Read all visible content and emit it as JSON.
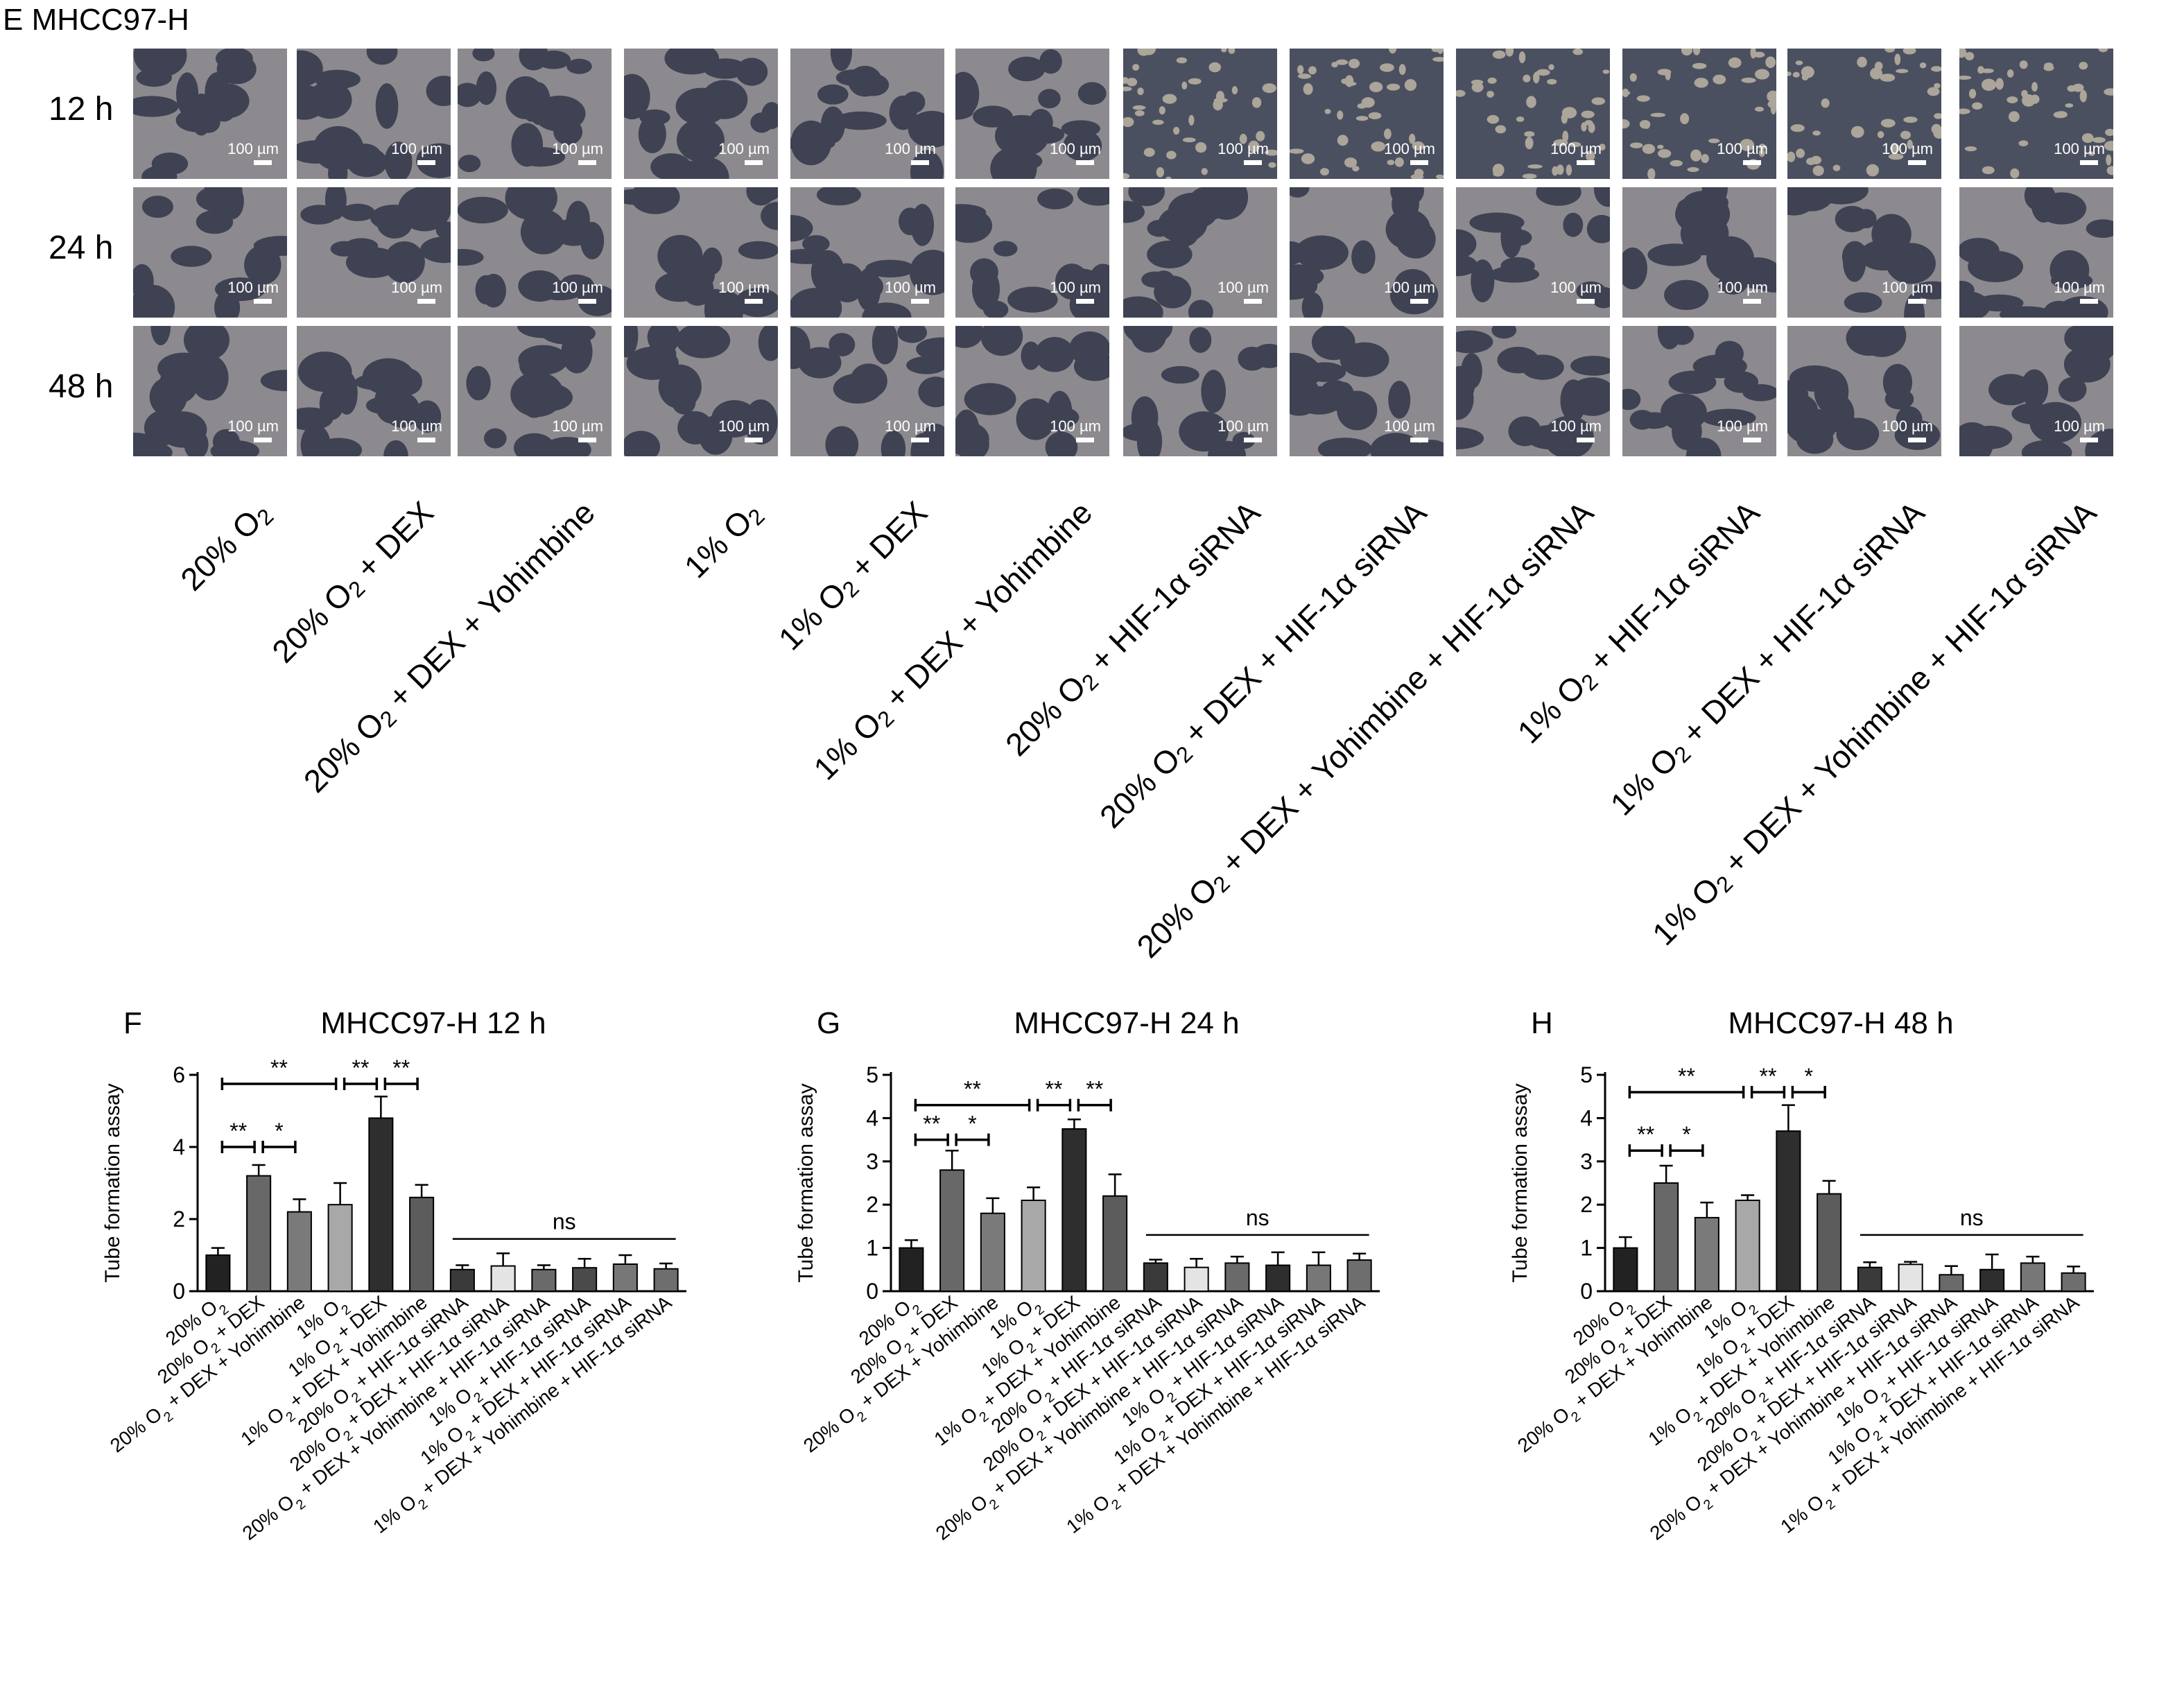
{
  "panel_e": {
    "label": "E",
    "cell_line": "MHCC97-H",
    "rows": [
      "12 h",
      "24 h",
      "48 h"
    ],
    "scale_bar": "100 µm",
    "conditions": [
      "20% O₂",
      "20% O₂ + DEX",
      "20% O₂ + DEX + Yohimbine",
      "1% O₂",
      "1% O₂ + DEX",
      "1% O₂ + DEX + Yohimbine",
      "20% O₂ + HIF-1α siRNA",
      "20% O₂ + DEX + HIF-1α siRNA",
      "20% O₂ + DEX + Yohimbine + HIF-1α siRNA",
      "1% O₂ + HIF-1α siRNA",
      "1% O₂ + DEX + HIF-1α siRNA",
      "1% O₂ + DEX + Yohimbine + HIF-1α siRNA"
    ]
  },
  "chart_data": [
    {
      "type": "bar",
      "panel": "F",
      "title": "MHCC97-H 12 h",
      "ylabel": "Tube formation assay",
      "ylim": [
        0,
        6
      ],
      "yticks": [
        0,
        2,
        4,
        6
      ],
      "categories": [
        "20% O₂",
        "20% O₂ + DEX",
        "20% O₂ + DEX + Yohimbine",
        "1% O₂",
        "1% O₂ + DEX",
        "1% O₂ + DEX + Yohimbine",
        "20% O₂ + HIF-1α siRNA",
        "20% O₂ + DEX + HIF-1α siRNA",
        "20% O₂ + DEX + Yohimbine + HIF-1α siRNA",
        "1% O₂ + HIF-1α siRNA",
        "1% O₂ + DEX + HIF-1α siRNA",
        "1% O₂ + DEX + Yohimbine + HIF-1α siRNA"
      ],
      "values": [
        1.0,
        3.2,
        2.2,
        2.4,
        4.8,
        2.6,
        0.6,
        0.7,
        0.6,
        0.65,
        0.75,
        0.62
      ],
      "errors": [
        0.2,
        0.3,
        0.35,
        0.6,
        0.6,
        0.35,
        0.12,
        0.35,
        0.12,
        0.25,
        0.25,
        0.15
      ],
      "colors": [
        "#222222",
        "#686868",
        "#7a7a7a",
        "#a8a8a8",
        "#2e2e2e",
        "#5c5c5c",
        "#3a3a3a",
        "#e4e4e4",
        "#6a6a6a",
        "#4a4a4a",
        "#777777",
        "#6e6e6e"
      ],
      "brackets": [
        {
          "from": 0,
          "to": 1,
          "label": "**",
          "y": 4.0
        },
        {
          "from": 1,
          "to": 2,
          "label": "*",
          "y": 4.0
        },
        {
          "from": 0,
          "to": 3,
          "label": "**",
          "y": 5.75
        },
        {
          "from": 3,
          "to": 4,
          "label": "**",
          "y": 5.75
        },
        {
          "from": 4,
          "to": 5,
          "label": "**",
          "y": 5.75
        }
      ],
      "ns_line": {
        "from": 6,
        "to": 11,
        "label": "ns",
        "y": 1.45
      }
    },
    {
      "type": "bar",
      "panel": "G",
      "title": "MHCC97-H 24 h",
      "ylabel": "Tube formation assay",
      "ylim": [
        0,
        5
      ],
      "yticks": [
        0,
        1,
        2,
        3,
        4,
        5
      ],
      "categories": [
        "20% O₂",
        "20% O₂ + DEX",
        "20% O₂ + DEX + Yohimbine",
        "1% O₂",
        "1% O₂ + DEX",
        "1% O₂ + DEX + Yohimbine",
        "20% O₂ + HIF-1α siRNA",
        "20% O₂ + DEX + HIF-1α siRNA",
        "20% O₂ + DEX + Yohimbine + HIF-1α siRNA",
        "1% O₂ + HIF-1α siRNA",
        "1% O₂ + DEX + HIF-1α siRNA",
        "1% O₂ + DEX + Yohimbine + HIF-1α siRNA"
      ],
      "values": [
        1.0,
        2.8,
        1.8,
        2.1,
        3.75,
        2.2,
        0.65,
        0.55,
        0.65,
        0.6,
        0.6,
        0.72
      ],
      "errors": [
        0.18,
        0.45,
        0.35,
        0.3,
        0.22,
        0.5,
        0.08,
        0.2,
        0.15,
        0.3,
        0.3,
        0.15
      ],
      "colors": [
        "#222222",
        "#686868",
        "#7a7a7a",
        "#a8a8a8",
        "#2e2e2e",
        "#5c5c5c",
        "#3a3a3a",
        "#e4e4e4",
        "#6a6a6a",
        "#2e2e2e",
        "#777777",
        "#6e6e6e"
      ],
      "brackets": [
        {
          "from": 0,
          "to": 1,
          "label": "**",
          "y": 3.5
        },
        {
          "from": 1,
          "to": 2,
          "label": "*",
          "y": 3.5
        },
        {
          "from": 0,
          "to": 3,
          "label": "**",
          "y": 4.3
        },
        {
          "from": 3,
          "to": 4,
          "label": "**",
          "y": 4.3
        },
        {
          "from": 4,
          "to": 5,
          "label": "**",
          "y": 4.3
        }
      ],
      "ns_line": {
        "from": 6,
        "to": 11,
        "label": "ns",
        "y": 1.3
      }
    },
    {
      "type": "bar",
      "panel": "H",
      "title": "MHCC97-H 48 h",
      "ylabel": "Tube formation assay",
      "ylim": [
        0,
        5
      ],
      "yticks": [
        0,
        1,
        2,
        3,
        4,
        5
      ],
      "categories": [
        "20% O₂",
        "20% O₂ + DEX",
        "20% O₂ + DEX + Yohimbine",
        "1% O₂",
        "1% O₂ + DEX",
        "1% O₂ + DEX + Yohimbine",
        "20% O₂ + HIF-1α siRNA",
        "20% O₂ + DEX + HIF-1α siRNA",
        "20% O₂ + DEX + Yohimbine + HIF-1α siRNA",
        "1% O₂ + HIF-1α siRNA",
        "1% O₂ + DEX + HIF-1α siRNA",
        "1% O₂ + DEX + Yohimbine + HIF-1α siRNA"
      ],
      "values": [
        1.0,
        2.5,
        1.7,
        2.1,
        3.7,
        2.25,
        0.55,
        0.62,
        0.38,
        0.5,
        0.65,
        0.42
      ],
      "errors": [
        0.25,
        0.4,
        0.35,
        0.12,
        0.6,
        0.3,
        0.12,
        0.06,
        0.2,
        0.35,
        0.15,
        0.15
      ],
      "colors": [
        "#222222",
        "#686868",
        "#7a7a7a",
        "#a8a8a8",
        "#2e2e2e",
        "#5c5c5c",
        "#3a3a3a",
        "#e4e4e4",
        "#6a6a6a",
        "#2e2e2e",
        "#777777",
        "#6e6e6e"
      ],
      "brackets": [
        {
          "from": 0,
          "to": 1,
          "label": "**",
          "y": 3.25
        },
        {
          "from": 1,
          "to": 2,
          "label": "*",
          "y": 3.25
        },
        {
          "from": 0,
          "to": 3,
          "label": "**",
          "y": 4.6
        },
        {
          "from": 3,
          "to": 4,
          "label": "**",
          "y": 4.6
        },
        {
          "from": 4,
          "to": 5,
          "label": "*",
          "y": 4.6
        }
      ],
      "ns_line": {
        "from": 6,
        "to": 11,
        "label": "ns",
        "y": 1.3
      }
    }
  ]
}
